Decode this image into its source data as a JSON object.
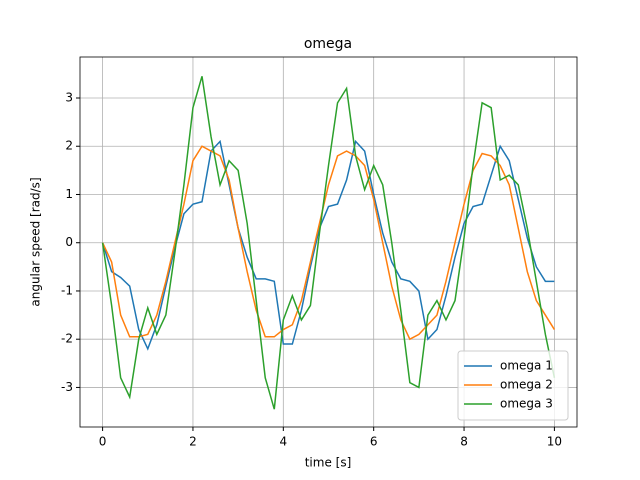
{
  "chart_data": {
    "type": "line",
    "title": "omega",
    "x_label": "time [s]",
    "y_label": "angular speed [rad/s]",
    "x": [
      0,
      0.2,
      0.4,
      0.6,
      0.8,
      1,
      1.2,
      1.4,
      1.6,
      1.8,
      2,
      2.2,
      2.4,
      2.6,
      2.8,
      3,
      3.2,
      3.4,
      3.6,
      3.8,
      4,
      4.2,
      4.4,
      4.6,
      4.8,
      5,
      5.2,
      5.4,
      5.6,
      5.8,
      6,
      6.2,
      6.4,
      6.6,
      6.8,
      7,
      7.2,
      7.4,
      7.6,
      7.8,
      8,
      8.2,
      8.4,
      8.6,
      8.8,
      9,
      9.2,
      9.4,
      9.6,
      9.8,
      10
    ],
    "series": [
      {
        "name": "omega 1",
        "color": "#1f77b4",
        "values": [
          0,
          -0.6,
          -0.72,
          -0.9,
          -1.8,
          -2.2,
          -1.7,
          -0.9,
          -0.1,
          0.6,
          0.8,
          0.85,
          1.9,
          2.1,
          1.2,
          0.3,
          -0.3,
          -0.75,
          -0.75,
          -0.8,
          -2.1,
          -2.1,
          -1.4,
          -0.5,
          0.3,
          0.75,
          0.8,
          1.3,
          2.1,
          1.9,
          1.0,
          0.2,
          -0.4,
          -0.75,
          -0.8,
          -1.0,
          -2.0,
          -1.8,
          -1.1,
          -0.3,
          0.4,
          0.75,
          0.8,
          1.4,
          2.0,
          1.7,
          0.9,
          0.1,
          -0.5,
          -0.8,
          -0.8
        ]
      },
      {
        "name": "omega 2",
        "color": "#ff7f0e",
        "values": [
          0,
          -0.4,
          -1.5,
          -1.95,
          -1.95,
          -1.9,
          -1.5,
          -0.8,
          0,
          0.8,
          1.7,
          2.0,
          1.9,
          1.8,
          1.3,
          0.3,
          -0.6,
          -1.4,
          -1.95,
          -1.95,
          -1.8,
          -1.7,
          -1.2,
          -0.4,
          0.4,
          1.2,
          1.8,
          1.9,
          1.8,
          1.6,
          0.9,
          0,
          -0.9,
          -1.6,
          -2.0,
          -1.9,
          -1.7,
          -1.5,
          -0.8,
          0,
          0.8,
          1.5,
          1.85,
          1.8,
          1.6,
          1.2,
          0.3,
          -0.6,
          -1.2,
          -1.5,
          -1.8
        ]
      },
      {
        "name": "omega 3",
        "color": "#2ca02c",
        "values": [
          0,
          -1.3,
          -2.8,
          -3.2,
          -2.0,
          -1.35,
          -1.9,
          -1.5,
          -0.2,
          1.2,
          2.8,
          3.45,
          2.2,
          1.2,
          1.7,
          1.5,
          0.4,
          -1.2,
          -2.8,
          -3.45,
          -1.6,
          -1.1,
          -1.6,
          -1.3,
          0.2,
          1.6,
          2.9,
          3.2,
          1.8,
          1.1,
          1.6,
          1.2,
          0,
          -1.4,
          -2.9,
          -3.0,
          -1.5,
          -1.2,
          -1.6,
          -1.2,
          0.1,
          1.6,
          2.9,
          2.8,
          1.3,
          1.4,
          1.2,
          0.3,
          -0.8,
          -1.9,
          -2.8
        ]
      }
    ],
    "xlim": [
      -0.5,
      10.5
    ],
    "ylim": [
      -3.82,
      3.85
    ],
    "xticks": [
      0,
      2,
      4,
      6,
      8,
      10
    ],
    "yticks": [
      -3,
      -2,
      -1,
      0,
      1,
      2,
      3
    ],
    "grid": true,
    "legend": "lower right"
  }
}
